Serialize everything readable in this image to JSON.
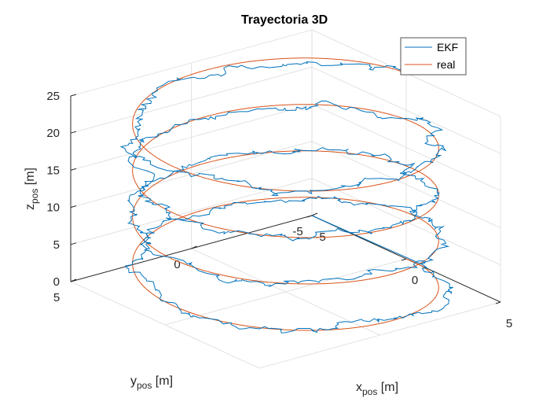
{
  "chart_data": {
    "type": "line3d",
    "title": "Trayectoria 3D",
    "xlabel": {
      "base": "x",
      "sub": "pos",
      "unit": " [m]"
    },
    "ylabel": {
      "base": "y",
      "sub": "pos",
      "unit": " [m]"
    },
    "zlabel": {
      "base": "z",
      "sub": "pos",
      "unit": " [m]"
    },
    "xlim": [
      -5,
      5
    ],
    "ylim": [
      -5,
      5
    ],
    "zlim": [
      0,
      25
    ],
    "xticks": [
      -5,
      0,
      5
    ],
    "yticks": [
      -5,
      0,
      5
    ],
    "zticks": [
      0,
      5,
      10,
      15,
      20,
      25
    ],
    "grid": true,
    "legend_position": "top-right",
    "helix": {
      "radius": 5,
      "turns": 4,
      "z_start": 0,
      "z_end": 25,
      "phase_start_deg": -90
    },
    "series": [
      {
        "name": "EKF",
        "color": "#0072BD",
        "start_point": [
          -5,
          -5,
          0
        ],
        "noise_amplitude": 0.5
      },
      {
        "name": "real",
        "color": "#D95319"
      }
    ]
  }
}
